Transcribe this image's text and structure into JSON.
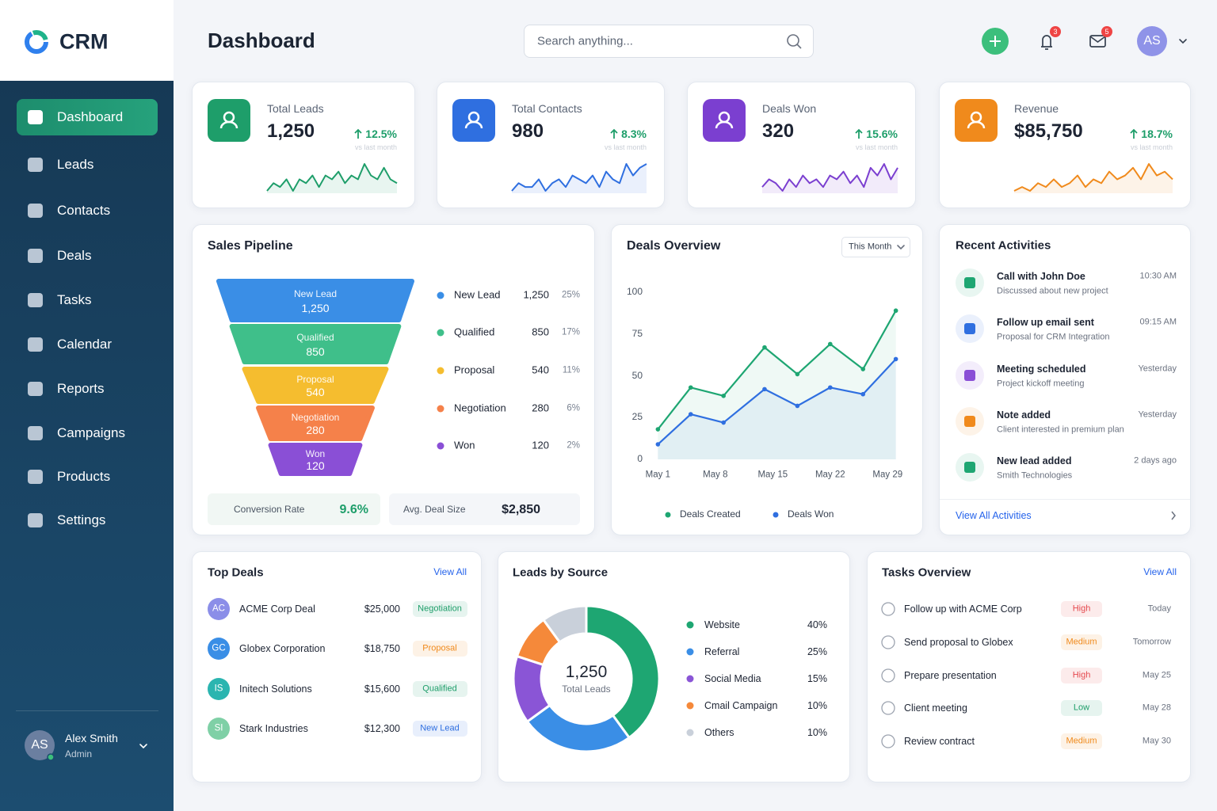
{
  "brand": "CRM",
  "header": {
    "title": "Dashboard",
    "search_placeholder": "Search anything...",
    "notification_count": "3",
    "message_count": "5",
    "avatar": "AS"
  },
  "sidebar": {
    "items": [
      "Dashboard",
      "Leads",
      "Contacts",
      "Deals",
      "Tasks",
      "Calendar",
      "Reports",
      "Campaigns",
      "Products",
      "Settings"
    ],
    "user": {
      "initials": "AS",
      "name": "Alex Smith",
      "role": "Admin"
    }
  },
  "kpis": [
    {
      "label": "Total Leads",
      "value": "1,250",
      "change": "12.5%",
      "note": "vs last month",
      "color": "#1e9e6a",
      "trend": [
        2,
        4,
        3,
        5,
        2,
        5,
        4,
        6,
        3,
        6,
        5,
        7,
        4,
        6,
        5,
        9,
        6,
        5,
        8,
        5,
        4
      ]
    },
    {
      "label": "Total Contacts",
      "value": "980",
      "change": "8.3%",
      "note": "vs last month",
      "color": "#2f6fe0",
      "trend": [
        2,
        4,
        3,
        3,
        5,
        2,
        4,
        5,
        3,
        6,
        5,
        4,
        6,
        3,
        7,
        5,
        4,
        9,
        6,
        8,
        9
      ]
    },
    {
      "label": "Deals Won",
      "value": "320",
      "change": "15.6%",
      "note": "vs last month",
      "color": "#7b3fd0",
      "trend": [
        3,
        5,
        4,
        2,
        5,
        3,
        6,
        4,
        5,
        3,
        6,
        5,
        7,
        4,
        6,
        3,
        8,
        6,
        9,
        5,
        8
      ]
    },
    {
      "label": "Revenue",
      "value": "$85,750",
      "change": "18.7%",
      "note": "vs last month",
      "color": "#f08a1c",
      "trend": [
        2,
        3,
        2,
        4,
        3,
        5,
        3,
        4,
        6,
        3,
        5,
        4,
        7,
        5,
        6,
        8,
        5,
        9,
        6,
        7,
        5
      ]
    }
  ],
  "pipeline": {
    "title": "Sales Pipeline",
    "stages": [
      {
        "name": "New Lead",
        "value": 1250,
        "label": "1,250",
        "share": "25%",
        "color": "#3a8ee6"
      },
      {
        "name": "Qualified",
        "value": 850,
        "label": "850",
        "share": "17%",
        "color": "#3fbf8a"
      },
      {
        "name": "Proposal",
        "value": 540,
        "label": "540",
        "share": "11%",
        "color": "#f5bd2f"
      },
      {
        "name": "Negotiation",
        "value": 280,
        "label": "280",
        "share": "6%",
        "color": "#f5814a"
      },
      {
        "name": "Won",
        "value": 120,
        "label": "120",
        "share": "2%",
        "color": "#8a4fd6"
      }
    ],
    "conversion_label": "Conversion Rate",
    "conversion": "9.6%",
    "avg_deal_label": "Avg. Deal Size",
    "avg_deal": "$2,850"
  },
  "deals_overview": {
    "title": "Deals Overview",
    "filter": "This Month",
    "chart_data": {
      "type": "line",
      "x": [
        1,
        5,
        9,
        14,
        18,
        22,
        26,
        30
      ],
      "xlim": [
        0,
        31
      ],
      "xticks": [
        {
          "value": 1,
          "label": "May 1"
        },
        {
          "value": 8,
          "label": "May 8"
        },
        {
          "value": 15,
          "label": "May 15"
        },
        {
          "value": 22,
          "label": "May 22"
        },
        {
          "value": 29,
          "label": "May 29"
        }
      ],
      "ylim": [
        0,
        100
      ],
      "yticks": [
        0,
        25,
        50,
        75,
        100
      ],
      "grid": false,
      "series": [
        {
          "name": "Deals Created",
          "color": "#1ea672",
          "values": [
            18,
            43,
            38,
            67,
            51,
            69,
            54,
            89
          ]
        },
        {
          "name": "Deals Won",
          "color": "#2f6fe0",
          "values": [
            9,
            27,
            22,
            42,
            32,
            43,
            39,
            60
          ]
        }
      ]
    }
  },
  "recent_activities": {
    "title": "Recent Activities",
    "link": "View All Activities",
    "items": [
      {
        "title": "Call with John Doe",
        "detail": "Discussed about new project",
        "time": "10:30 AM",
        "color": "#1ea672"
      },
      {
        "title": "Follow up email sent",
        "detail": "Proposal for CRM Integration",
        "time": "09:15 AM",
        "color": "#2f6fe0"
      },
      {
        "title": "Meeting scheduled",
        "detail": "Project kickoff meeting",
        "time": "Yesterday",
        "color": "#8a4fd6"
      },
      {
        "title": "Note added",
        "detail": "Client interested in premium plan",
        "time": "Yesterday",
        "color": "#f08a1c"
      },
      {
        "title": "New lead added",
        "detail": "Smith Technologies",
        "time": "2 days ago",
        "color": "#1ea672"
      }
    ]
  },
  "top_deals": {
    "title": "Top Deals",
    "link": "View All",
    "rows": [
      {
        "initials": "AC",
        "name": "ACME Corp Deal",
        "amount": "$25,000",
        "stage": "Negotiation",
        "avatar_color": "#8b8ee8",
        "stage_color": "#1e9e6a"
      },
      {
        "initials": "GC",
        "name": "Globex Corporation",
        "amount": "$18,750",
        "stage": "Proposal",
        "avatar_color": "#3a8ee6",
        "stage_color": "#f08a1c"
      },
      {
        "initials": "IS",
        "name": "Initech Solutions",
        "amount": "$15,600",
        "stage": "Qualified",
        "avatar_color": "#2bb5b0",
        "stage_color": "#1e9e6a"
      },
      {
        "initials": "SI",
        "name": "Stark Industries",
        "amount": "$12,300",
        "stage": "New Lead",
        "avatar_color": "#7fd0a6",
        "stage_color": "#2f6fe0"
      }
    ]
  },
  "leads_by_source": {
    "title": "Leads by Source",
    "total": "1,250",
    "total_label": "Total Leads",
    "chart_data": {
      "type": "pie",
      "categories": [
        "Website",
        "Referral",
        "Social Media",
        "Cmail Campaign",
        "Others"
      ],
      "values": [
        40,
        25,
        15,
        10,
        10
      ],
      "value_labels": [
        "40%",
        "25%",
        "15%",
        "10%",
        "10%"
      ],
      "colors": [
        "#1ea672",
        "#3a8ee6",
        "#8a55d6",
        "#f5893a",
        "#c9d0da"
      ]
    }
  },
  "tasks": {
    "title": "Tasks Overview",
    "link": "View All",
    "rows": [
      {
        "task": "Follow up with ACME Corp",
        "priority": "High",
        "due": "Today",
        "priority_color": "#e5484d"
      },
      {
        "task": "Send proposal to Globex",
        "priority": "Medium",
        "due": "Tomorrow",
        "priority_color": "#f08a1c"
      },
      {
        "task": "Prepare presentation",
        "priority": "High",
        "due": "May 25",
        "priority_color": "#e5484d"
      },
      {
        "task": "Client meeting",
        "priority": "Low",
        "due": "May 28",
        "priority_color": "#1e9e6a"
      },
      {
        "task": "Review contract",
        "priority": "Medium",
        "due": "May 30",
        "priority_color": "#f08a1c"
      }
    ]
  }
}
